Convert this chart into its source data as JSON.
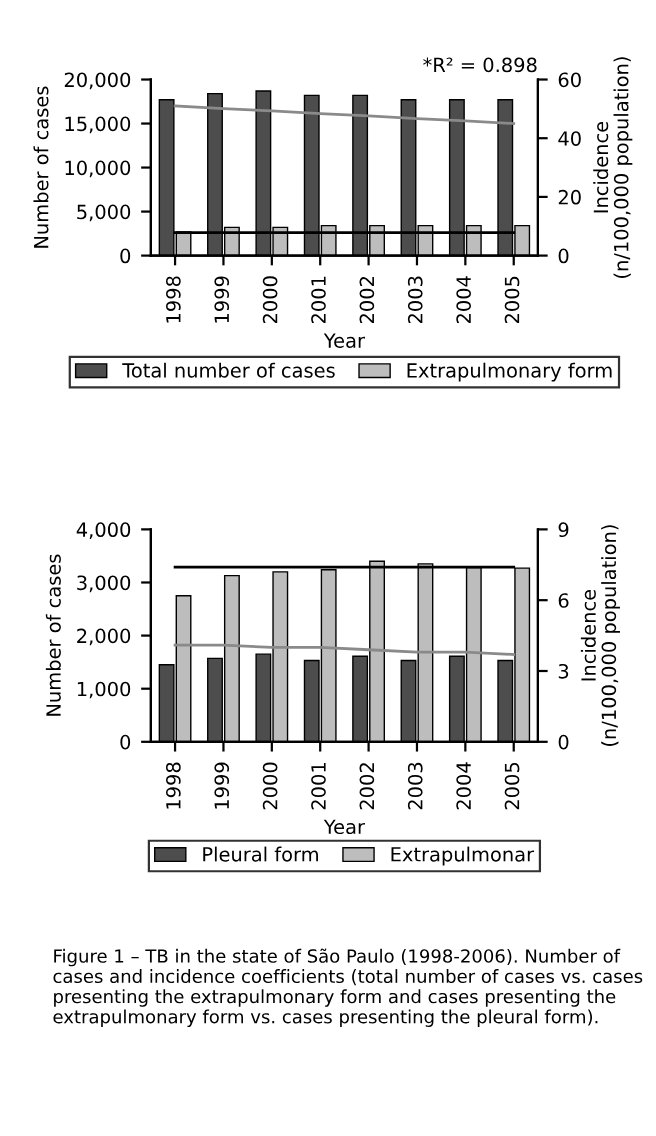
{
  "chart_data": [
    {
      "type": "bar",
      "categories": [
        "1998",
        "1999",
        "2000",
        "2001",
        "2002",
        "2003",
        "2004",
        "2005"
      ],
      "xlabel": "Year",
      "ylabel": "Number of cases",
      "y2label": "Incidence\n(n/100,000 population)",
      "ylim": [
        0,
        20000
      ],
      "yticks": [
        {
          "value": 0,
          "label": "0"
        },
        {
          "value": 5000,
          "label": "5,000"
        },
        {
          "value": 10000,
          "label": "10,000"
        },
        {
          "value": 15000,
          "label": "15,000"
        },
        {
          "value": 20000,
          "label": "20,000"
        }
      ],
      "y2lim": [
        0,
        60
      ],
      "y2ticks": [
        0,
        20,
        40,
        60
      ],
      "legend": "bottom",
      "grid": false,
      "annotations": [
        "*R² = 0.898"
      ],
      "series": [
        {
          "name": "Total number of cases",
          "color": "#4d4d4d",
          "values": [
            17700,
            18400,
            18700,
            18200,
            18200,
            17700,
            17700,
            17700
          ]
        },
        {
          "name": "Extrapulmonary form",
          "color": "#bdbdbd",
          "values": [
            2700,
            3200,
            3200,
            3400,
            3400,
            3400,
            3400,
            3400
          ]
        },
        {
          "type": "line",
          "axis": "y2",
          "color": "#8a8a8a",
          "values": [
            51,
            50.1,
            49.3,
            48.4,
            47.6,
            46.7,
            45.9,
            45
          ]
        },
        {
          "type": "line",
          "axis": "y2",
          "color": "#000000",
          "values": [
            7.8,
            7.8,
            7.8,
            7.8,
            7.8,
            7.8,
            7.8,
            7.8
          ]
        }
      ]
    },
    {
      "type": "bar",
      "categories": [
        "1998",
        "1999",
        "2000",
        "2001",
        "2002",
        "2003",
        "2004",
        "2005"
      ],
      "xlabel": "Year",
      "ylabel": "Number of cases",
      "y2label": "Incidence\n(n/100,000 population)",
      "ylim": [
        0,
        4000
      ],
      "yticks": [
        {
          "value": 0,
          "label": "0"
        },
        {
          "value": 1000,
          "label": "1,000"
        },
        {
          "value": 2000,
          "label": "2,000"
        },
        {
          "value": 3000,
          "label": "3,000"
        },
        {
          "value": 4000,
          "label": "4,000"
        }
      ],
      "y2lim": [
        0,
        9
      ],
      "y2ticks": [
        0,
        3,
        6,
        9
      ],
      "legend": "bottom",
      "grid": false,
      "annotations": [
        "Figure 1 – TB in the state of São Paulo (1998-2006). Number of cases and incidence coefficients (total number of cases vs. cases presenting the extrapulmonary form and cases presenting the extrapulmonary form vs. cases presenting the pleural form)."
      ],
      "series": [
        {
          "name": "Pleural form",
          "color": "#4d4d4d",
          "values": [
            1450,
            1570,
            1650,
            1530,
            1610,
            1530,
            1610,
            1530
          ]
        },
        {
          "name": "Extrapulmonar",
          "color": "#bdbdbd",
          "values": [
            2750,
            3130,
            3200,
            3240,
            3400,
            3350,
            3280,
            3270
          ]
        },
        {
          "type": "line",
          "axis": "y2",
          "color": "#000000",
          "values": [
            7.4,
            7.4,
            7.4,
            7.4,
            7.4,
            7.4,
            7.4,
            7.4
          ]
        },
        {
          "type": "line",
          "axis": "y2",
          "color": "#8a8a8a",
          "values": [
            4.1,
            4.1,
            4.0,
            4.0,
            3.9,
            3.8,
            3.8,
            3.7
          ]
        }
      ]
    }
  ]
}
